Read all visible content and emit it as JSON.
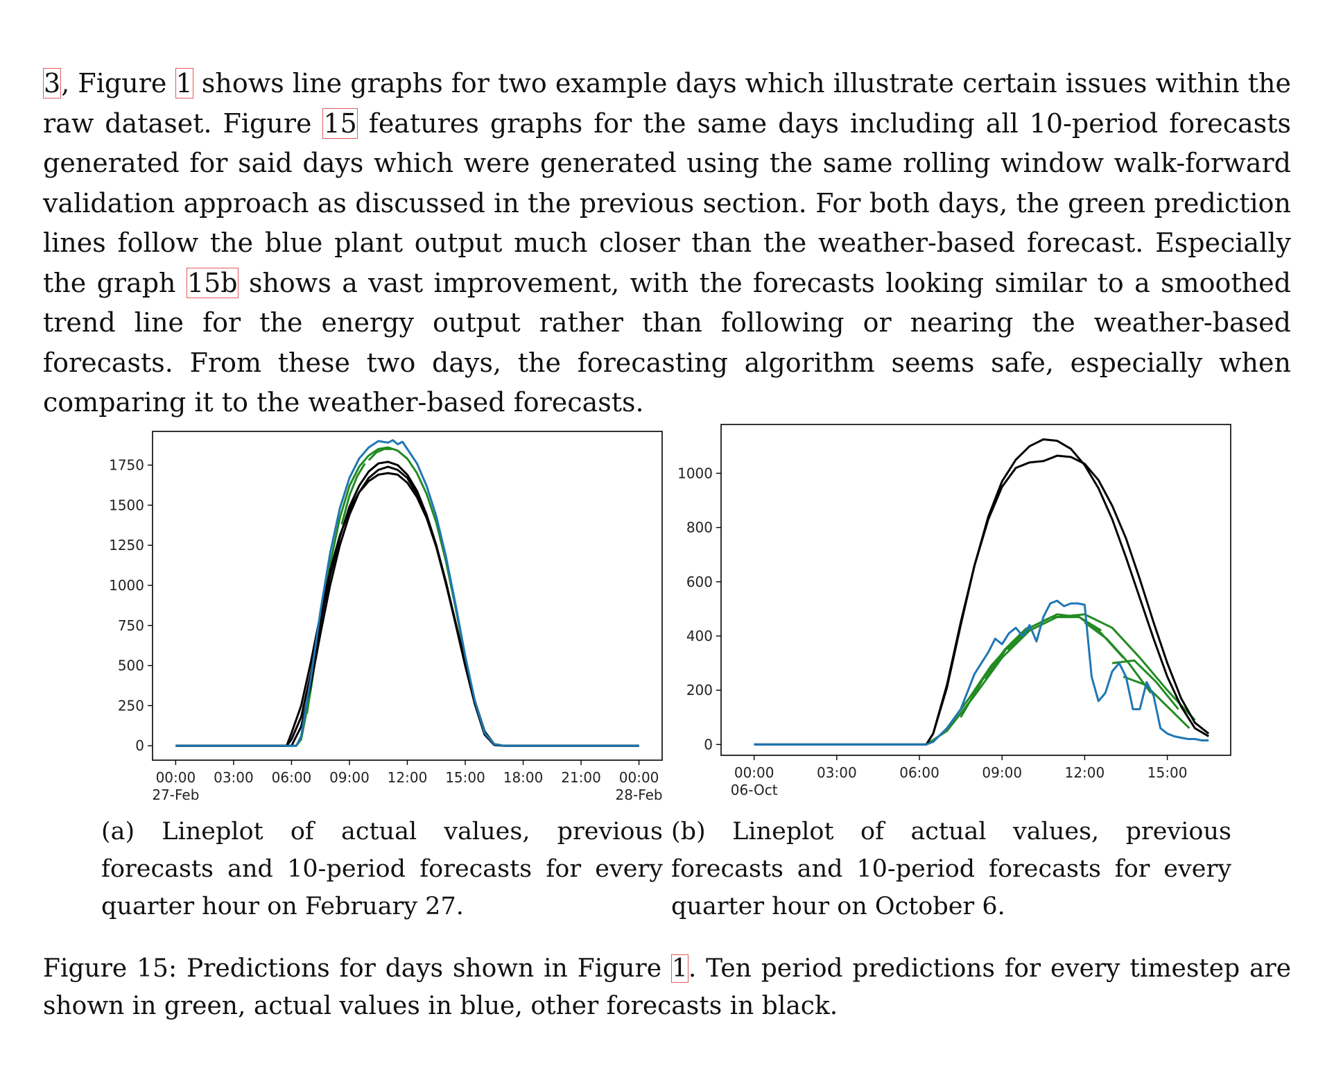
{
  "paragraph": {
    "p1": "3",
    "p2": ", Figure ",
    "ref1": "1",
    "p3": " shows line graphs for two example days which illustrate certain issues within the raw dataset. Figure ",
    "ref2": "15",
    "p4": " features graphs for the same days including all 10-period forecasts generated for said days which were generated using the same rolling window walk-forward validation approach as discussed in the previous section. For both days, the green prediction lines follow the blue plant output much closer than the weather-based forecast. Especially the graph ",
    "ref3": "15b",
    "p5": " shows a vast improvement, with the forecasts looking similar to a smoothed trend line for the energy output rather than following or nearing the weather-based forecasts. From these two days, the forecasting algorithm seems safe, especially when comparing it to the weather-based forecasts."
  },
  "captions": {
    "a": "(a) Lineplot of actual values, previous forecasts and 10-period forecasts for every quarter hour on February 27.",
    "b": "(b) Lineplot of actual values, previous forecasts and 10-period forecasts for every quarter hour on October 6."
  },
  "figure_caption": {
    "c1": "Figure 15: Predictions for days shown in Figure ",
    "ref": "1",
    "c2": ". Ten period predictions for every timestep are shown in green, actual values in blue, other forecasts in black."
  },
  "colors": {
    "actual": "#1f77b4",
    "prediction": "#228b22",
    "forecast": "#000000",
    "ref_box": "#e05a5a"
  },
  "chart_data": [
    {
      "type": "line",
      "x_ticks": [
        0,
        3,
        6,
        9,
        12,
        15,
        18,
        21,
        24
      ],
      "x_tick_labels": [
        "00:00",
        "03:00",
        "06:00",
        "09:00",
        "12:00",
        "15:00",
        "18:00",
        "21:00",
        "00:00"
      ],
      "x_tick_sublabels": {
        "0": "27-Feb",
        "24": "28-Feb"
      },
      "xlim": [
        -1.2,
        25.2
      ],
      "y_ticks": [
        0,
        250,
        500,
        750,
        1000,
        1250,
        1500,
        1750
      ],
      "ylim": [
        -90,
        1960
      ],
      "series": [
        {
          "role": "forecast",
          "x": [
            0,
            5.75,
            6.0,
            6.5,
            7.0,
            7.5,
            8.0,
            8.5,
            9.0,
            9.5,
            10.0,
            10.5,
            11.0,
            11.5,
            12.0,
            12.5,
            13.0,
            13.5,
            14.0,
            14.5,
            15.0,
            15.5,
            16.0,
            16.5,
            17.0,
            24
          ],
          "y": [
            0,
            0,
            80,
            250,
            520,
            820,
            1090,
            1310,
            1470,
            1580,
            1650,
            1690,
            1700,
            1690,
            1640,
            1550,
            1420,
            1240,
            1020,
            770,
            520,
            280,
            90,
            10,
            0,
            0
          ]
        },
        {
          "role": "forecast",
          "x": [
            0,
            5.75,
            6.0,
            6.5,
            7.0,
            7.5,
            8.0,
            8.5,
            9.0,
            9.5,
            10.0,
            10.5,
            11.0,
            11.5,
            12.0,
            12.5,
            13.0,
            13.5,
            14.0,
            14.5,
            15.0,
            15.5,
            16.0,
            16.5,
            17.0,
            24
          ],
          "y": [
            0,
            0,
            40,
            180,
            450,
            770,
            1060,
            1300,
            1490,
            1620,
            1710,
            1760,
            1770,
            1750,
            1690,
            1590,
            1440,
            1250,
            1020,
            760,
            500,
            260,
            70,
            5,
            0,
            0
          ]
        },
        {
          "role": "forecast",
          "x": [
            0,
            6.0,
            6.5,
            7.0,
            7.5,
            8.0,
            8.5,
            9.0,
            9.5,
            10.0,
            10.5,
            11.0,
            11.5,
            12.0,
            12.5,
            13.0,
            13.5,
            14.0,
            14.5,
            15.0,
            15.5,
            16.0,
            16.5,
            17.0,
            24
          ],
          "y": [
            0,
            0,
            120,
            380,
            700,
            1000,
            1250,
            1440,
            1580,
            1670,
            1720,
            1740,
            1720,
            1670,
            1570,
            1430,
            1240,
            1010,
            760,
            500,
            260,
            70,
            5,
            0,
            0
          ]
        },
        {
          "role": "actual",
          "x": [
            0,
            6.25,
            6.5,
            7.0,
            7.5,
            8.0,
            8.5,
            9.0,
            9.5,
            10.0,
            10.5,
            11.0,
            11.25,
            11.5,
            11.75,
            12.0,
            12.5,
            13.0,
            13.5,
            14.0,
            14.5,
            15.0,
            15.5,
            16.0,
            16.5,
            17.0,
            24
          ],
          "y": [
            0,
            0,
            60,
            420,
            840,
            1200,
            1480,
            1670,
            1790,
            1860,
            1900,
            1890,
            1905,
            1880,
            1895,
            1850,
            1760,
            1620,
            1430,
            1180,
            880,
            560,
            280,
            80,
            10,
            0,
            0
          ]
        },
        {
          "role": "prediction",
          "x": [
            0,
            6.25,
            6.5,
            7.0,
            7.5,
            8.0,
            8.5,
            9.0,
            9.5,
            10.0,
            10.5,
            11.0,
            11.5,
            12.0,
            12.5,
            13.0,
            13.5,
            14.0,
            14.5,
            15.0,
            15.5,
            16.0,
            16.5,
            17.0,
            24
          ],
          "y": [
            0,
            0,
            40,
            350,
            760,
            1130,
            1420,
            1620,
            1740,
            1810,
            1850,
            1860,
            1840,
            1790,
            1700,
            1570,
            1390,
            1150,
            860,
            550,
            270,
            80,
            10,
            0,
            0
          ]
        },
        {
          "role": "prediction",
          "x": [
            6.8,
            7.2,
            7.6,
            8.0,
            8.4
          ],
          "y": [
            200,
            520,
            840,
            1080,
            1200
          ]
        },
        {
          "role": "prediction",
          "x": [
            8.6,
            9.0,
            9.4,
            9.8
          ],
          "y": [
            1380,
            1560,
            1680,
            1760
          ]
        },
        {
          "role": "prediction",
          "x": [
            10.0,
            10.4,
            10.8,
            11.2
          ],
          "y": [
            1780,
            1830,
            1850,
            1850
          ]
        }
      ]
    },
    {
      "type": "line",
      "x_ticks": [
        0,
        3,
        6,
        9,
        12,
        15
      ],
      "x_tick_labels": [
        "00:00",
        "03:00",
        "06:00",
        "09:00",
        "12:00",
        "15:00"
      ],
      "x_tick_sublabels": {
        "0": "06-Oct"
      },
      "xlim": [
        -1.2,
        17.3
      ],
      "y_ticks": [
        0,
        200,
        400,
        600,
        800,
        1000
      ],
      "ylim": [
        -40,
        1180
      ],
      "series": [
        {
          "role": "forecast",
          "x": [
            0,
            6.25,
            6.5,
            7.0,
            7.5,
            8.0,
            8.5,
            9.0,
            9.5,
            10.0,
            10.5,
            11.0,
            11.5,
            12.0,
            12.5,
            13.0,
            13.5,
            14.0,
            14.5,
            15.0,
            15.5,
            16.0,
            16.5
          ],
          "y": [
            0,
            0,
            40,
            220,
            450,
            660,
            830,
            950,
            1020,
            1040,
            1045,
            1065,
            1060,
            1035,
            975,
            880,
            760,
            610,
            450,
            300,
            170,
            80,
            40
          ]
        },
        {
          "role": "forecast",
          "x": [
            0,
            6.25,
            6.5,
            7.0,
            7.5,
            8.0,
            8.5,
            9.0,
            9.5,
            10.0,
            10.5,
            11.0,
            11.5,
            12.0,
            12.5,
            13.0,
            13.5,
            14.0,
            14.5,
            15.0,
            15.5,
            16.0,
            16.5
          ],
          "y": [
            0,
            0,
            40,
            210,
            440,
            660,
            840,
            970,
            1050,
            1100,
            1125,
            1120,
            1090,
            1030,
            945,
            830,
            690,
            540,
            390,
            250,
            140,
            60,
            30
          ]
        },
        {
          "role": "actual",
          "x": [
            0,
            6.25,
            6.5,
            7.0,
            7.5,
            8.0,
            8.25,
            8.5,
            8.75,
            9.0,
            9.25,
            9.5,
            9.75,
            10.0,
            10.25,
            10.5,
            10.75,
            11.0,
            11.25,
            11.5,
            11.75,
            12.0,
            12.25,
            12.5,
            12.75,
            13.0,
            13.25,
            13.5,
            13.75,
            14.0,
            14.25,
            14.5,
            14.75,
            15.0,
            15.25,
            15.5,
            15.75,
            16.0,
            16.25,
            16.5
          ],
          "y": [
            0,
            0,
            10,
            60,
            130,
            260,
            300,
            340,
            390,
            370,
            410,
            430,
            400,
            440,
            380,
            470,
            520,
            530,
            510,
            520,
            520,
            515,
            250,
            160,
            190,
            270,
            300,
            250,
            130,
            130,
            230,
            180,
            60,
            40,
            30,
            25,
            20,
            20,
            15,
            15
          ]
        },
        {
          "role": "prediction",
          "x": [
            6.25,
            7.0,
            8.0,
            9.0,
            10.0,
            11.0,
            12.0,
            13.0,
            14.0,
            15.0,
            16.0
          ],
          "y": [
            0,
            50,
            180,
            320,
            420,
            470,
            480,
            430,
            320,
            200,
            90
          ]
        },
        {
          "role": "prediction",
          "x": [
            7.0,
            7.8,
            8.6,
            9.4
          ],
          "y": [
            60,
            170,
            290,
            380
          ]
        },
        {
          "role": "prediction",
          "x": [
            7.5,
            8.3,
            9.1,
            9.9
          ],
          "y": [
            100,
            240,
            350,
            430
          ]
        },
        {
          "role": "prediction",
          "x": [
            8.4,
            9.2,
            10.0,
            10.8
          ],
          "y": [
            240,
            360,
            430,
            470
          ]
        },
        {
          "role": "prediction",
          "x": [
            9.2,
            10.0,
            10.8,
            11.6
          ],
          "y": [
            350,
            430,
            470,
            470
          ]
        },
        {
          "role": "prediction",
          "x": [
            10.2,
            11.0,
            11.8,
            12.6
          ],
          "y": [
            440,
            480,
            470,
            420
          ]
        },
        {
          "role": "prediction",
          "x": [
            11.0,
            11.8,
            12.6,
            13.4
          ],
          "y": [
            470,
            470,
            410,
            320
          ]
        },
        {
          "role": "prediction",
          "x": [
            12.0,
            12.8,
            13.6,
            14.4
          ],
          "y": [
            450,
            390,
            300,
            190
          ]
        },
        {
          "role": "prediction",
          "x": [
            13.0,
            13.8,
            14.6,
            15.4
          ],
          "y": [
            300,
            310,
            230,
            130
          ]
        },
        {
          "role": "prediction",
          "x": [
            13.4,
            14.2,
            15.0,
            15.8
          ],
          "y": [
            250,
            220,
            140,
            60
          ]
        }
      ]
    }
  ]
}
